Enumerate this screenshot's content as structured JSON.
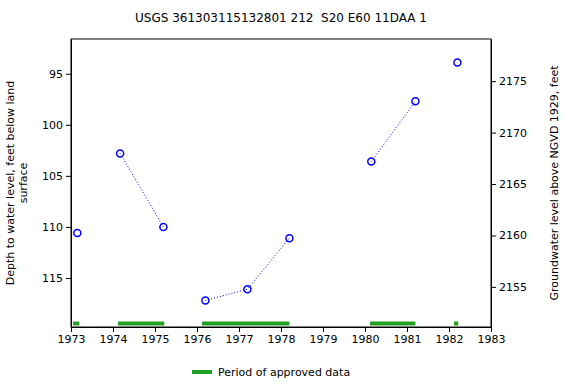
{
  "chart_data": {
    "type": "scatter",
    "title": "USGS 361303115132801 212  S20 E60 11DAA 1",
    "y_label": [
      "Depth to water level, feet below land",
      "surface"
    ],
    "y2_label": "Groundwater level above NGVD 1929, feet",
    "xlim": [
      1973,
      1983
    ],
    "xticks": [
      1973,
      1974,
      1975,
      1976,
      1977,
      1978,
      1979,
      1980,
      1981,
      1982,
      1983
    ],
    "ylim": [
      119.8,
      91.6
    ],
    "yticks": [
      95,
      100,
      105,
      110,
      115
    ],
    "y2lim": [
      2151.1,
      2179.1
    ],
    "y2ticks": [
      2155,
      2160,
      2165,
      2170,
      2175
    ],
    "marker": "circle-open",
    "line_style": "dotted",
    "color": "#0000ff",
    "series": [
      {
        "x": [
          1973.15
        ],
        "values": [
          110.6
        ]
      },
      {
        "x": [
          1974.17,
          1975.2
        ],
        "values": [
          102.8,
          110.0
        ]
      },
      {
        "x": [
          1976.2,
          1977.2,
          1978.2
        ],
        "values": [
          117.2,
          116.1,
          111.1
        ]
      },
      {
        "x": [
          1980.15,
          1981.2
        ],
        "values": [
          103.6,
          97.7
        ]
      },
      {
        "x": [
          1982.2
        ],
        "values": [
          93.9
        ]
      }
    ],
    "approved": {
      "name": "Period of approved data",
      "color": "#22a022",
      "ranges": [
        [
          1973.05,
          1973.2
        ],
        [
          1974.12,
          1975.22
        ],
        [
          1976.12,
          1978.2
        ],
        [
          1980.12,
          1981.2
        ],
        [
          1982.12,
          1982.22
        ]
      ]
    }
  }
}
